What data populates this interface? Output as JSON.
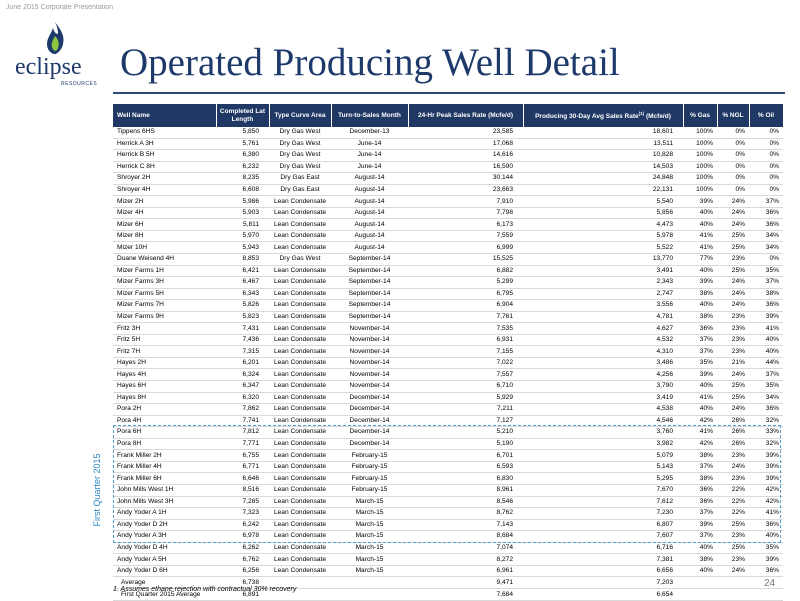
{
  "header": {
    "small_text": "June 2015 Corporate Presentation"
  },
  "logo": {
    "name": "eclipse",
    "sub": "RESOURCES"
  },
  "title": "Operated Producing Well Detail",
  "table": {
    "headers": {
      "well_name": "Well Name",
      "length": "Completed Lat Length",
      "curve": "Type Curve Area",
      "turn": "Turn-to-Sales Month",
      "peak": "24-Hr Peak Sales Rate (Mcfe/d)",
      "avg30_a": "Producing 30-Day Avg Sales Rate",
      "avg30_sup": "(1)",
      "avg30_b": " (Mcfe/d)",
      "gas": "% Gas",
      "ngl": "% NGL",
      "oil": "% Oil"
    },
    "rows": [
      [
        "Tippens 6HS",
        "5,850",
        "Dry Gas West",
        "December-13",
        "23,585",
        "18,601",
        "100%",
        "0%",
        "0%"
      ],
      [
        "Herrick A 3H",
        "5,761",
        "Dry Gas West",
        "June-14",
        "17,068",
        "13,511",
        "100%",
        "0%",
        "0%"
      ],
      [
        "Herrick B 5H",
        "6,380",
        "Dry Gas West",
        "June-14",
        "14,616",
        "10,828",
        "100%",
        "0%",
        "0%"
      ],
      [
        "Herrick C 8H",
        "6,232",
        "Dry Gas West",
        "June-14",
        "16,590",
        "14,503",
        "100%",
        "0%",
        "0%"
      ],
      [
        "Shroyer 2H",
        "8,235",
        "Dry Gas East",
        "August-14",
        "30,144",
        "24,848",
        "100%",
        "0%",
        "0%"
      ],
      [
        "Shroyer 4H",
        "6,608",
        "Dry Gas East",
        "August-14",
        "23,663",
        "22,131",
        "100%",
        "0%",
        "0%"
      ],
      [
        "Mizer 2H",
        "5,986",
        "Lean Condensate",
        "August-14",
        "7,910",
        "5,540",
        "39%",
        "24%",
        "37%"
      ],
      [
        "Mizer 4H",
        "5,903",
        "Lean Condensate",
        "August-14",
        "7,798",
        "5,856",
        "40%",
        "24%",
        "36%"
      ],
      [
        "Mizer 6H",
        "5,811",
        "Lean Condensate",
        "August-14",
        "6,173",
        "4,473",
        "40%",
        "24%",
        "36%"
      ],
      [
        "Mizer 8H",
        "5,970",
        "Lean Condensate",
        "August-14",
        "7,559",
        "5,978",
        "41%",
        "25%",
        "34%"
      ],
      [
        "Mizer 10H",
        "5,943",
        "Lean Condensate",
        "August-14",
        "6,999",
        "5,522",
        "41%",
        "25%",
        "34%"
      ],
      [
        "Duane Weisend 4H",
        "8,853",
        "Dry Gas West",
        "September-14",
        "15,525",
        "13,770",
        "77%",
        "23%",
        "0%"
      ],
      [
        "Mizer Farms 1H",
        "6,421",
        "Lean Condensate",
        "September-14",
        "6,882",
        "3,491",
        "40%",
        "25%",
        "35%"
      ],
      [
        "Mizer Farms 3H",
        "6,467",
        "Lean Condensate",
        "September-14",
        "5,299",
        "2,343",
        "39%",
        "24%",
        "37%"
      ],
      [
        "Mizer Farms 5H",
        "6,343",
        "Lean Condensate",
        "September-14",
        "6,795",
        "2,747",
        "38%",
        "24%",
        "38%"
      ],
      [
        "Mizer Farms 7H",
        "5,826",
        "Lean Condensate",
        "September-14",
        "6,904",
        "3,556",
        "40%",
        "24%",
        "36%"
      ],
      [
        "Mizer Farms 9H",
        "5,823",
        "Lean Condensate",
        "September-14",
        "7,761",
        "4,781",
        "38%",
        "23%",
        "39%"
      ],
      [
        "Fritz 3H",
        "7,431",
        "Lean Condensate",
        "November-14",
        "7,535",
        "4,627",
        "36%",
        "23%",
        "41%"
      ],
      [
        "Fritz 5H",
        "7,436",
        "Lean Condensate",
        "November-14",
        "6,931",
        "4,532",
        "37%",
        "23%",
        "40%"
      ],
      [
        "Fritz 7H",
        "7,315",
        "Lean Condensate",
        "November-14",
        "7,155",
        "4,310",
        "37%",
        "23%",
        "40%"
      ],
      [
        "Hayes 2H",
        "6,201",
        "Lean Condensate",
        "November-14",
        "7,022",
        "3,486",
        "35%",
        "21%",
        "44%"
      ],
      [
        "Hayes 4H",
        "6,324",
        "Lean Condensate",
        "November-14",
        "7,557",
        "4,256",
        "39%",
        "24%",
        "37%"
      ],
      [
        "Hayes 6H",
        "6,347",
        "Lean Condensate",
        "November-14",
        "6,710",
        "3,790",
        "40%",
        "25%",
        "35%"
      ],
      [
        "Hayes 8H",
        "6,320",
        "Lean Condensate",
        "December-14",
        "5,929",
        "3,419",
        "41%",
        "25%",
        "34%"
      ],
      [
        "Pora 2H",
        "7,862",
        "Lean Condensate",
        "December-14",
        "7,211",
        "4,538",
        "40%",
        "24%",
        "36%"
      ],
      [
        "Pora 4H",
        "7,741",
        "Lean Condensate",
        "December-14",
        "7,127",
        "4,546",
        "42%",
        "26%",
        "32%"
      ],
      [
        "Pora 6H",
        "7,812",
        "Lean Condensate",
        "December-14",
        "5,210",
        "3,760",
        "41%",
        "26%",
        "33%"
      ],
      [
        "Pora 8H",
        "7,771",
        "Lean Condensate",
        "December-14",
        "5,190",
        "3,982",
        "42%",
        "26%",
        "32%"
      ],
      [
        "Frank Miller 2H",
        "6,755",
        "Lean Condensate",
        "February-15",
        "6,701",
        "5,079",
        "38%",
        "23%",
        "39%"
      ],
      [
        "Frank Miller 4H",
        "6,771",
        "Lean Condensate",
        "February-15",
        "6,593",
        "5,143",
        "37%",
        "24%",
        "39%"
      ],
      [
        "Frank Miller 6H",
        "6,646",
        "Lean Condensate",
        "February-15",
        "6,830",
        "5,295",
        "38%",
        "23%",
        "39%"
      ],
      [
        "John Mills West 1H",
        "8,516",
        "Lean Condensate",
        "February-15",
        "8,961",
        "7,670",
        "36%",
        "22%",
        "42%"
      ],
      [
        "John Mills West 3H",
        "7,285",
        "Lean Condensate",
        "March-15",
        "8,546",
        "7,612",
        "36%",
        "22%",
        "42%"
      ],
      [
        "Andy Yoder A 1H",
        "7,323",
        "Lean Condensate",
        "March-15",
        "8,762",
        "7,230",
        "37%",
        "22%",
        "41%"
      ],
      [
        "Andy Yoder D 2H",
        "6,242",
        "Lean Condensate",
        "March-15",
        "7,143",
        "6,807",
        "39%",
        "25%",
        "36%"
      ],
      [
        "Andy Yoder A 3H",
        "6,978",
        "Lean Condensate",
        "March-15",
        "8,684",
        "7,607",
        "37%",
        "23%",
        "40%"
      ],
      [
        "Andy Yoder D 4H",
        "6,262",
        "Lean Condensate",
        "March-15",
        "7,074",
        "6,716",
        "40%",
        "25%",
        "35%"
      ],
      [
        "Andy Yoder A 5H",
        "6,762",
        "Lean Condensate",
        "March-15",
        "8,272",
        "7,381",
        "38%",
        "23%",
        "39%"
      ],
      [
        "Andy Yoder D 6H",
        "6,256",
        "Lean Condensate",
        "March-15",
        "6,961",
        "6,656",
        "40%",
        "24%",
        "36%"
      ]
    ],
    "summary": [
      [
        "Average",
        "6,738",
        "",
        "",
        "9,471",
        "7,203",
        "",
        "",
        ""
      ],
      [
        "First Quarter 2015 Average",
        "6,891",
        "",
        "",
        "7,684",
        "6,654",
        "",
        "",
        ""
      ]
    ]
  },
  "quarter_label": "First Quarter 2015",
  "footnote": "1.  Assumes ethane rejection with contractual 30% recovery",
  "page_number": "24",
  "colors": {
    "header_bg": "#1f3864",
    "title": "#1d3a6b",
    "quarter_box": "#4ba3d6"
  }
}
